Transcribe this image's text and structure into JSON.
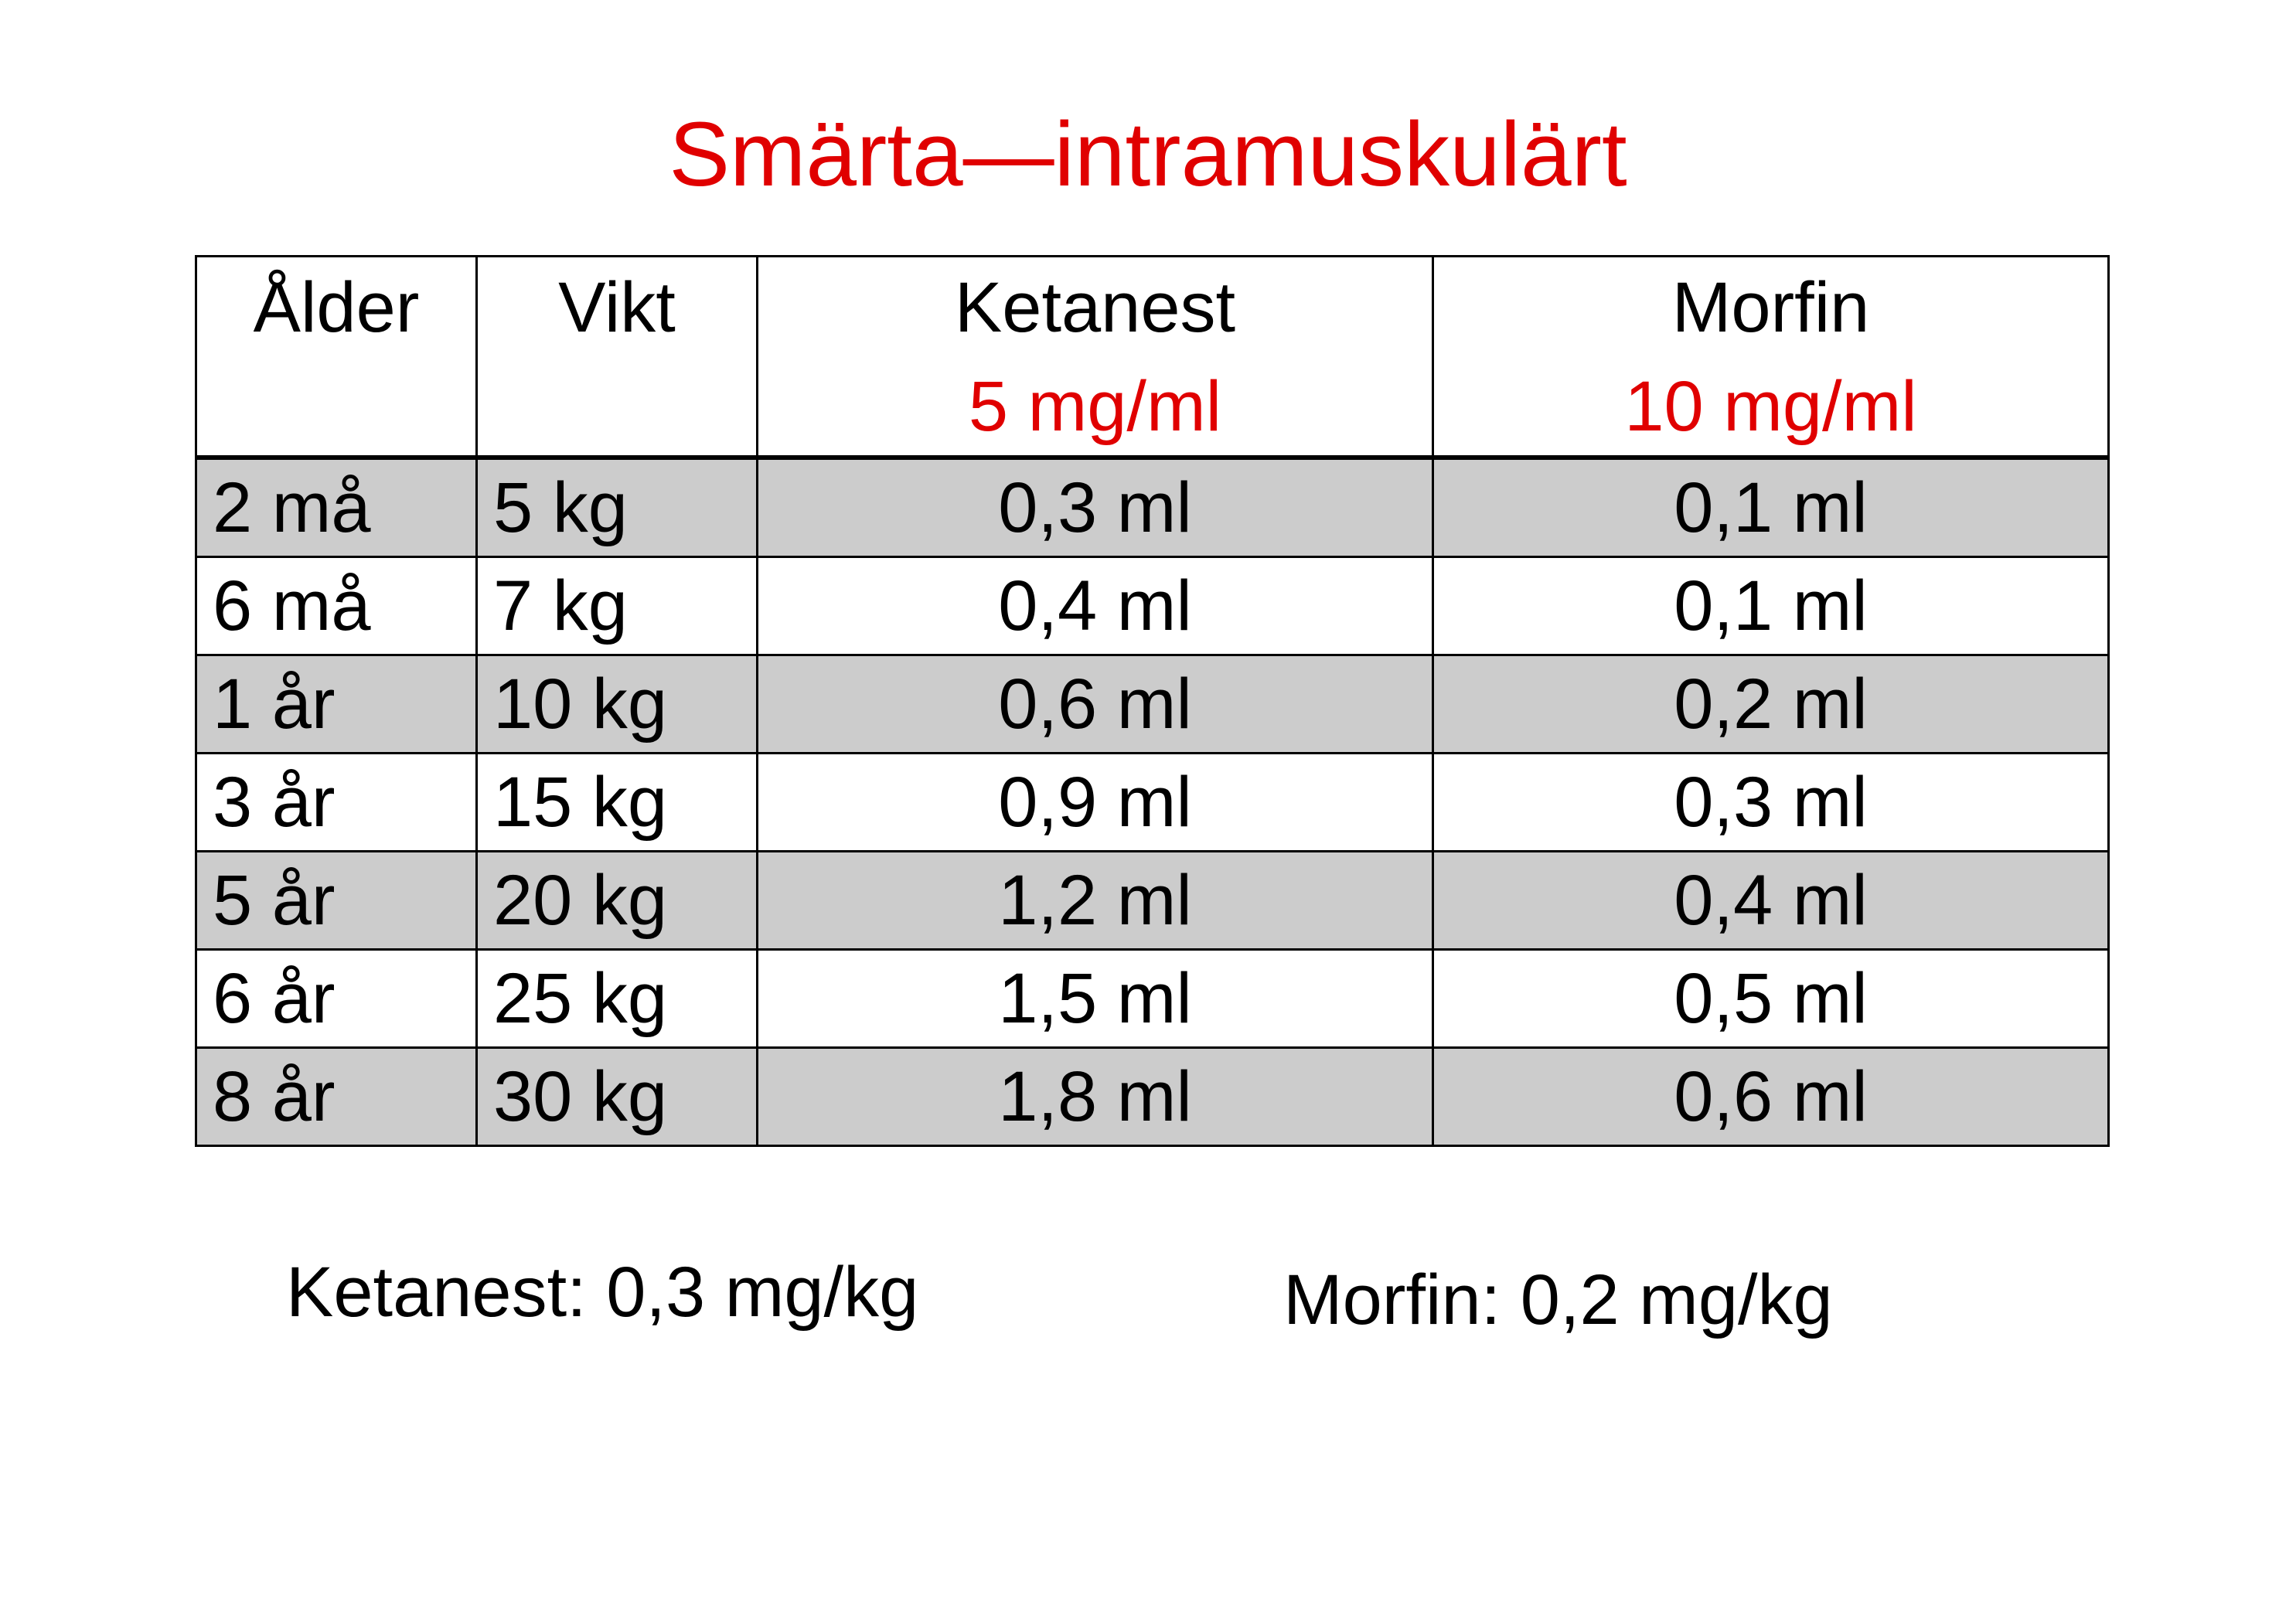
{
  "title": "Smärta—intramuskulärt",
  "table": {
    "headers": [
      {
        "name": "Ålder",
        "concentration": ""
      },
      {
        "name": "Vikt",
        "concentration": ""
      },
      {
        "name": "Ketanest",
        "concentration": "5 mg/ml"
      },
      {
        "name": "Morfin",
        "concentration": "10 mg/ml"
      }
    ],
    "rows": [
      {
        "age": "2 må",
        "weight": "5 kg",
        "ketanest": "0,3 ml",
        "morfin": "0,1 ml"
      },
      {
        "age": "6 må",
        "weight": "7 kg",
        "ketanest": "0,4 ml",
        "morfin": "0,1 ml"
      },
      {
        "age": "1 år",
        "weight": "10 kg",
        "ketanest": "0,6 ml",
        "morfin": "0,2 ml"
      },
      {
        "age": "3 år",
        "weight": "15 kg",
        "ketanest": "0,9 ml",
        "morfin": "0,3 ml"
      },
      {
        "age": "5 år",
        "weight": "20 kg",
        "ketanest": "1,2 ml",
        "morfin": "0,4 ml"
      },
      {
        "age": "6 år",
        "weight": "25 kg",
        "ketanest": "1,5 ml",
        "morfin": "0,5 ml"
      },
      {
        "age": "8 år",
        "weight": "30 kg",
        "ketanest": "1,8 ml",
        "morfin": "0,6 ml"
      }
    ]
  },
  "notes": {
    "ketanest": "Ketanest:  0,3 mg/kg",
    "morfin": "Morfin:  0,2 mg/kg"
  },
  "colors": {
    "accent_red": "#e00000",
    "row_shade": "#cccccc",
    "text": "#000000",
    "background": "#ffffff"
  }
}
